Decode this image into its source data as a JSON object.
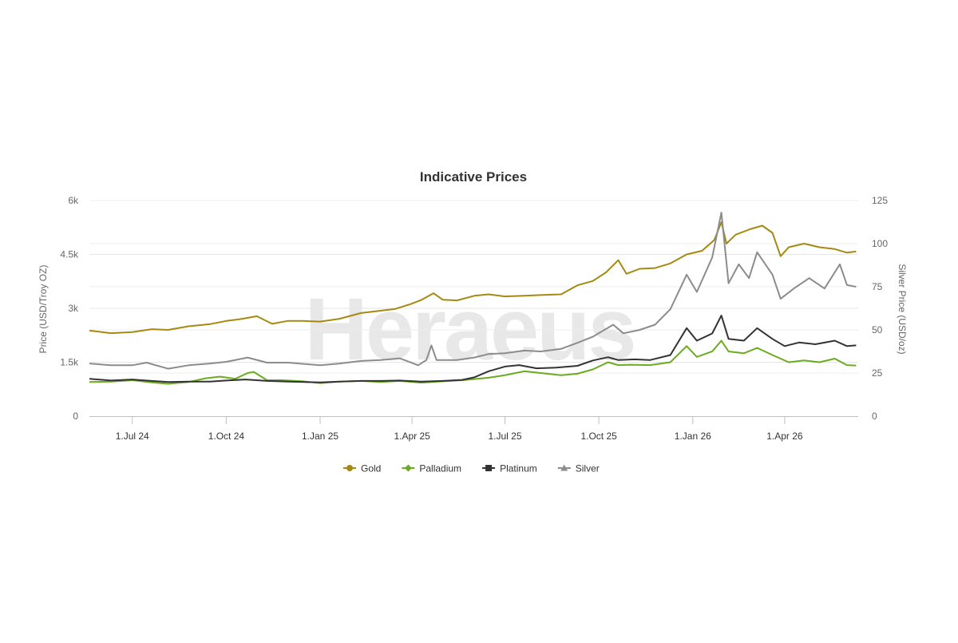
{
  "watermark": "Heraeus",
  "chart_data": {
    "type": "line",
    "title": "Indicative Prices",
    "y_left": {
      "label": "Price (USD/Troy OZ)",
      "ticks": [
        "0",
        "1.5k",
        "3k",
        "4.5k",
        "6k"
      ],
      "tick_values": [
        0,
        1500,
        3000,
        4500,
        6000
      ],
      "range": [
        0,
        6000
      ]
    },
    "y_right": {
      "label": "Silver Price (USD/oz)",
      "ticks": [
        "0",
        "25",
        "50",
        "75",
        "100",
        "125"
      ],
      "tick_values": [
        0,
        25,
        50,
        75,
        100,
        125
      ],
      "range": [
        0,
        125
      ]
    },
    "x_axis": {
      "range": [
        "2024-05-20",
        "2026-06-12"
      ],
      "ticks": [
        "1.Jul 24",
        "1.Oct 24",
        "1.Jan 25",
        "1.Apr 25",
        "1.Jul 25",
        "1.Oct 25",
        "1.Jan 26",
        "1.Apr 26"
      ],
      "tick_dates": [
        "2024-07-01",
        "2024-10-01",
        "2025-01-01",
        "2025-04-01",
        "2025-07-01",
        "2025-10-01",
        "2026-01-01",
        "2026-04-01"
      ]
    },
    "grid": true,
    "legend_position": "bottom-center",
    "series": [
      {
        "name": "Gold",
        "axis": "left",
        "color": "#a58a12",
        "marker": "circle",
        "data": [
          [
            "2024-05-20",
            2380
          ],
          [
            "2024-06-10",
            2310
          ],
          [
            "2024-07-01",
            2340
          ],
          [
            "2024-07-20",
            2420
          ],
          [
            "2024-08-05",
            2400
          ],
          [
            "2024-08-25",
            2500
          ],
          [
            "2024-09-15",
            2560
          ],
          [
            "2024-10-01",
            2650
          ],
          [
            "2024-10-15",
            2700
          ],
          [
            "2024-10-31",
            2780
          ],
          [
            "2024-11-15",
            2570
          ],
          [
            "2024-11-30",
            2650
          ],
          [
            "2024-12-15",
            2650
          ],
          [
            "2025-01-01",
            2630
          ],
          [
            "2025-01-20",
            2710
          ],
          [
            "2025-02-10",
            2870
          ],
          [
            "2025-02-25",
            2920
          ],
          [
            "2025-03-15",
            2980
          ],
          [
            "2025-03-31",
            3120
          ],
          [
            "2025-04-10",
            3230
          ],
          [
            "2025-04-22",
            3420
          ],
          [
            "2025-05-01",
            3240
          ],
          [
            "2025-05-15",
            3220
          ],
          [
            "2025-06-01",
            3350
          ],
          [
            "2025-06-15",
            3390
          ],
          [
            "2025-07-01",
            3330
          ],
          [
            "2025-07-20",
            3350
          ],
          [
            "2025-08-05",
            3370
          ],
          [
            "2025-08-25",
            3390
          ],
          [
            "2025-09-10",
            3640
          ],
          [
            "2025-09-25",
            3760
          ],
          [
            "2025-10-08",
            4000
          ],
          [
            "2025-10-20",
            4340
          ],
          [
            "2025-10-28",
            3960
          ],
          [
            "2025-11-10",
            4100
          ],
          [
            "2025-11-25",
            4120
          ],
          [
            "2025-12-10",
            4250
          ],
          [
            "2025-12-26",
            4500
          ],
          [
            "2026-01-10",
            4600
          ],
          [
            "2026-01-22",
            4900
          ],
          [
            "2026-01-29",
            5400
          ],
          [
            "2026-02-03",
            4800
          ],
          [
            "2026-02-12",
            5050
          ],
          [
            "2026-02-26",
            5200
          ],
          [
            "2026-03-10",
            5300
          ],
          [
            "2026-03-20",
            5100
          ],
          [
            "2026-03-28",
            4450
          ],
          [
            "2026-04-05",
            4700
          ],
          [
            "2026-04-20",
            4800
          ],
          [
            "2026-05-05",
            4700
          ],
          [
            "2026-05-20",
            4650
          ],
          [
            "2026-06-01",
            4550
          ],
          [
            "2026-06-10",
            4580
          ]
        ]
      },
      {
        "name": "Palladium",
        "axis": "left",
        "color": "#6aab1f",
        "marker": "diamond",
        "data": [
          [
            "2024-05-20",
            950
          ],
          [
            "2024-06-10",
            960
          ],
          [
            "2024-07-01",
            1000
          ],
          [
            "2024-07-20",
            940
          ],
          [
            "2024-08-05",
            900
          ],
          [
            "2024-08-25",
            950
          ],
          [
            "2024-09-10",
            1050
          ],
          [
            "2024-09-25",
            1100
          ],
          [
            "2024-10-10",
            1040
          ],
          [
            "2024-10-22",
            1200
          ],
          [
            "2024-10-28",
            1230
          ],
          [
            "2024-11-10",
            1000
          ],
          [
            "2024-11-25",
            1000
          ],
          [
            "2024-12-15",
            970
          ],
          [
            "2025-01-01",
            920
          ],
          [
            "2025-01-20",
            960
          ],
          [
            "2025-02-10",
            980
          ],
          [
            "2025-03-01",
            950
          ],
          [
            "2025-03-20",
            980
          ],
          [
            "2025-04-10",
            930
          ],
          [
            "2025-05-01",
            970
          ],
          [
            "2025-05-20",
            1000
          ],
          [
            "2025-06-01",
            1030
          ],
          [
            "2025-06-15",
            1070
          ],
          [
            "2025-07-01",
            1140
          ],
          [
            "2025-07-20",
            1250
          ],
          [
            "2025-08-05",
            1200
          ],
          [
            "2025-08-25",
            1140
          ],
          [
            "2025-09-10",
            1180
          ],
          [
            "2025-09-25",
            1300
          ],
          [
            "2025-10-10",
            1500
          ],
          [
            "2025-10-20",
            1420
          ],
          [
            "2025-11-01",
            1430
          ],
          [
            "2025-11-20",
            1420
          ],
          [
            "2025-12-10",
            1500
          ],
          [
            "2025-12-26",
            1950
          ],
          [
            "2026-01-05",
            1650
          ],
          [
            "2026-01-20",
            1800
          ],
          [
            "2026-01-29",
            2100
          ],
          [
            "2026-02-05",
            1800
          ],
          [
            "2026-02-20",
            1750
          ],
          [
            "2026-03-05",
            1900
          ],
          [
            "2026-03-20",
            1700
          ],
          [
            "2026-04-05",
            1500
          ],
          [
            "2026-04-20",
            1550
          ],
          [
            "2026-05-05",
            1500
          ],
          [
            "2026-05-20",
            1600
          ],
          [
            "2026-06-01",
            1420
          ],
          [
            "2026-06-10",
            1410
          ]
        ]
      },
      {
        "name": "Platinum",
        "axis": "left",
        "color": "#333333",
        "marker": "square",
        "data": [
          [
            "2024-05-20",
            1040
          ],
          [
            "2024-06-10",
            990
          ],
          [
            "2024-07-01",
            1020
          ],
          [
            "2024-07-20",
            980
          ],
          [
            "2024-08-05",
            950
          ],
          [
            "2024-08-25",
            960
          ],
          [
            "2024-09-15",
            960
          ],
          [
            "2024-10-01",
            990
          ],
          [
            "2024-10-20",
            1020
          ],
          [
            "2024-11-10",
            980
          ],
          [
            "2024-12-01",
            960
          ],
          [
            "2025-01-01",
            940
          ],
          [
            "2025-01-20",
            960
          ],
          [
            "2025-02-10",
            980
          ],
          [
            "2025-03-01",
            980
          ],
          [
            "2025-03-20",
            990
          ],
          [
            "2025-04-10",
            960
          ],
          [
            "2025-05-01",
            980
          ],
          [
            "2025-05-20",
            1010
          ],
          [
            "2025-06-01",
            1080
          ],
          [
            "2025-06-15",
            1250
          ],
          [
            "2025-07-01",
            1380
          ],
          [
            "2025-07-15",
            1420
          ],
          [
            "2025-08-01",
            1330
          ],
          [
            "2025-08-20",
            1350
          ],
          [
            "2025-09-10",
            1400
          ],
          [
            "2025-09-25",
            1550
          ],
          [
            "2025-10-10",
            1640
          ],
          [
            "2025-10-20",
            1560
          ],
          [
            "2025-11-05",
            1580
          ],
          [
            "2025-11-20",
            1560
          ],
          [
            "2025-12-10",
            1700
          ],
          [
            "2025-12-26",
            2450
          ],
          [
            "2026-01-05",
            2100
          ],
          [
            "2026-01-20",
            2300
          ],
          [
            "2026-01-29",
            2800
          ],
          [
            "2026-02-05",
            2150
          ],
          [
            "2026-02-20",
            2100
          ],
          [
            "2026-03-05",
            2450
          ],
          [
            "2026-03-20",
            2150
          ],
          [
            "2026-04-01",
            1950
          ],
          [
            "2026-04-15",
            2050
          ],
          [
            "2026-05-01",
            2000
          ],
          [
            "2026-05-20",
            2100
          ],
          [
            "2026-06-01",
            1950
          ],
          [
            "2026-06-10",
            1970
          ]
        ]
      },
      {
        "name": "Silver",
        "axis": "right",
        "color": "#8c8c8c",
        "marker": "triangle",
        "data": [
          [
            "2024-05-20",
            30.5
          ],
          [
            "2024-06-10",
            29.5
          ],
          [
            "2024-07-01",
            29.5
          ],
          [
            "2024-07-15",
            31.0
          ],
          [
            "2024-08-05",
            27.5
          ],
          [
            "2024-08-25",
            29.5
          ],
          [
            "2024-09-15",
            30.5
          ],
          [
            "2024-10-01",
            31.5
          ],
          [
            "2024-10-22",
            34.0
          ],
          [
            "2024-11-10",
            31.0
          ],
          [
            "2024-12-01",
            31.0
          ],
          [
            "2025-01-01",
            29.5
          ],
          [
            "2025-01-20",
            30.5
          ],
          [
            "2025-02-10",
            32.0
          ],
          [
            "2025-03-01",
            32.5
          ],
          [
            "2025-03-20",
            33.5
          ],
          [
            "2025-04-07",
            29.5
          ],
          [
            "2025-04-15",
            32.5
          ],
          [
            "2025-04-20",
            41.0
          ],
          [
            "2025-04-25",
            32.5
          ],
          [
            "2025-05-15",
            32.5
          ],
          [
            "2025-06-01",
            34.0
          ],
          [
            "2025-06-15",
            36.0
          ],
          [
            "2025-07-01",
            36.5
          ],
          [
            "2025-07-20",
            38.0
          ],
          [
            "2025-08-05",
            37.5
          ],
          [
            "2025-08-25",
            39.0
          ],
          [
            "2025-09-10",
            42.5
          ],
          [
            "2025-09-25",
            46.0
          ],
          [
            "2025-10-15",
            53.0
          ],
          [
            "2025-10-25",
            48.0
          ],
          [
            "2025-11-10",
            50.0
          ],
          [
            "2025-11-25",
            53.0
          ],
          [
            "2025-12-10",
            62.0
          ],
          [
            "2025-12-26",
            82.0
          ],
          [
            "2026-01-05",
            72.0
          ],
          [
            "2026-01-20",
            92.0
          ],
          [
            "2026-01-29",
            118.0
          ],
          [
            "2026-02-05",
            77.0
          ],
          [
            "2026-02-15",
            88.0
          ],
          [
            "2026-02-25",
            80.0
          ],
          [
            "2026-03-05",
            95.0
          ],
          [
            "2026-03-20",
            82.0
          ],
          [
            "2026-03-28",
            68.0
          ],
          [
            "2026-04-10",
            74.0
          ],
          [
            "2026-04-25",
            80.0
          ],
          [
            "2026-05-10",
            74.0
          ],
          [
            "2026-05-25",
            88.0
          ],
          [
            "2026-06-01",
            76.0
          ],
          [
            "2026-06-10",
            75.0
          ]
        ]
      }
    ]
  }
}
